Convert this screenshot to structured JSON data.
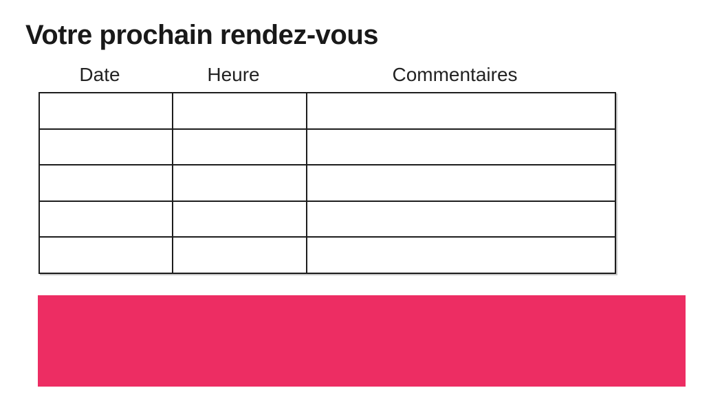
{
  "page": {
    "title": "Votre prochain rendez-vous"
  },
  "table": {
    "headers": [
      "Date",
      "Heure",
      "Commentaires"
    ],
    "rows": [
      [
        "",
        "",
        ""
      ],
      [
        "",
        "",
        ""
      ],
      [
        "",
        "",
        ""
      ],
      [
        "",
        "",
        ""
      ],
      [
        "",
        "",
        ""
      ]
    ]
  },
  "banner": {
    "text": ""
  },
  "colors": {
    "banner_pink": "#ED2D63",
    "table_border": "#1c1c1c",
    "text": "#191919"
  }
}
